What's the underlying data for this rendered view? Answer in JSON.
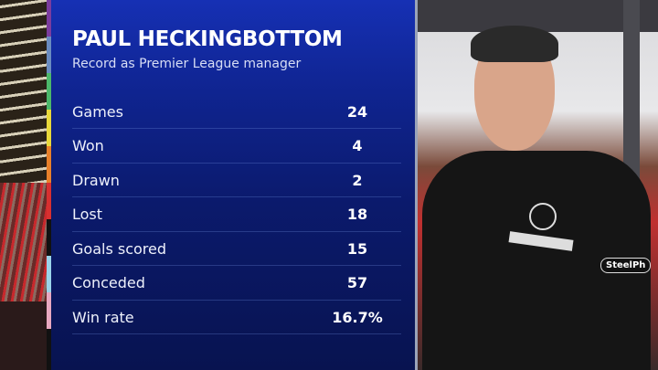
{
  "header": {
    "title": "PAUL HECKINGBOTTOM",
    "subtitle": "Record as Premier League manager"
  },
  "stats": [
    {
      "label": "Games",
      "value": "24"
    },
    {
      "label": "Won",
      "value": "4"
    },
    {
      "label": "Drawn",
      "value": "2"
    },
    {
      "label": "Lost",
      "value": "18"
    },
    {
      "label": "Goals scored",
      "value": "15"
    },
    {
      "label": "Conceded",
      "value": "57"
    },
    {
      "label": "Win rate",
      "value": "16.7%"
    }
  ],
  "colors": {
    "panel": "#0f2490",
    "strip": [
      "#7b3c9e",
      "#6a8cc0",
      "#4cb86a",
      "#e8d83a",
      "#e8802a",
      "#d83030",
      "transparent",
      "#9ad4ea",
      "#e8a8c0"
    ]
  },
  "photo": {
    "sponsor": "SteelPh"
  }
}
